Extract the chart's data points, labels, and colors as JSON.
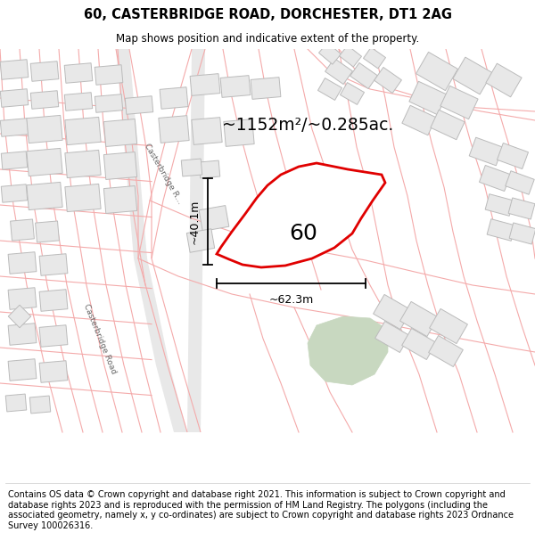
{
  "title": "60, CASTERBRIDGE ROAD, DORCHESTER, DT1 2AG",
  "subtitle": "Map shows position and indicative extent of the property.",
  "footer": "Contains OS data © Crown copyright and database right 2021. This information is subject to Crown copyright and database rights 2023 and is reproduced with the permission of HM Land Registry. The polygons (including the associated geometry, namely x, y co-ordinates) are subject to Crown copyright and database rights 2023 Ordnance Survey 100026316.",
  "area_label": "~1152m²/~0.285ac.",
  "number_label": "60",
  "dim_h": "~40.1m",
  "dim_w": "~62.3m",
  "road_label_upper": "Casterbridge R…",
  "road_label_lower": "Casterbridge Road",
  "bg_color": "#ffffff",
  "building_fill": "#e8e8e8",
  "building_edge": "#bbbbbb",
  "road_line_color": "#f4aaaa",
  "road_line_color2": "#cccccc",
  "highlight_fill": "#ffffff",
  "highlight_edge": "#e00000",
  "green_fill": "#c8d8c0",
  "title_fontsize": 10.5,
  "subtitle_fontsize": 8.5,
  "footer_fontsize": 7.0,
  "area_fontsize": 13.5,
  "number_fontsize": 18,
  "dim_fontsize": 9
}
